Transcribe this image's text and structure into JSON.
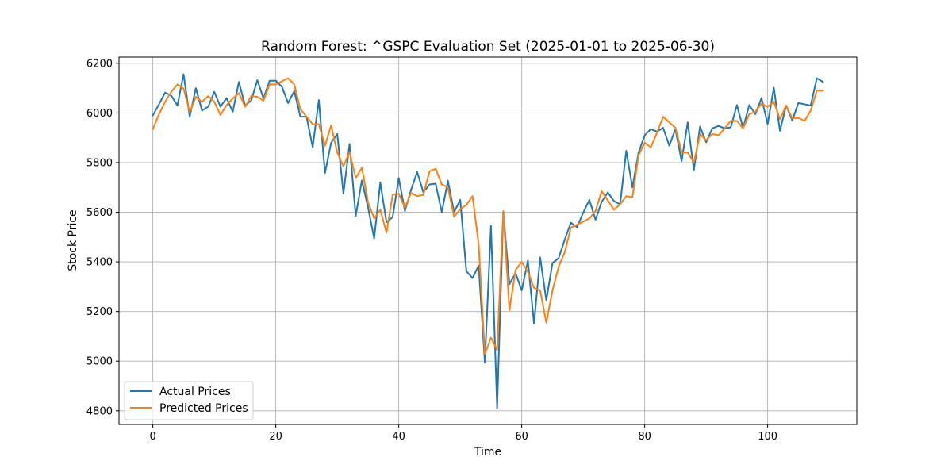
{
  "chart_data": {
    "type": "line",
    "title": "Random Forest: ^GSPC Evaluation Set (2025-01-01 to 2025-06-30)",
    "xlabel": "Time",
    "ylabel": "Stock Price",
    "xlim": [
      -5.5,
      114.5
    ],
    "ylim": [
      4745,
      6225
    ],
    "xticks": [
      0,
      20,
      40,
      60,
      80,
      100
    ],
    "yticks": [
      4800,
      5000,
      5200,
      5400,
      5600,
      5800,
      6000,
      6200
    ],
    "grid": true,
    "legend_position": "lower-left",
    "series": [
      {
        "name": "Actual Prices",
        "color": "#1f77b4",
        "values": [
          5990,
          6035,
          6082,
          6070,
          6030,
          6156,
          5985,
          6100,
          6010,
          6025,
          6085,
          6025,
          6060,
          6005,
          6125,
          6030,
          6050,
          6132,
          6058,
          6130,
          6130,
          6105,
          6040,
          6088,
          5985,
          5985,
          5862,
          6052,
          5758,
          5880,
          5915,
          5675,
          5875,
          5585,
          5728,
          5620,
          5495,
          5720,
          5560,
          5580,
          5738,
          5605,
          5690,
          5762,
          5680,
          5712,
          5715,
          5600,
          5727,
          5600,
          5650,
          5362,
          5335,
          5385,
          4995,
          5545,
          4810,
          5600,
          5310,
          5355,
          5285,
          5405,
          5152,
          5418,
          5245,
          5395,
          5415,
          5490,
          5558,
          5540,
          5598,
          5650,
          5570,
          5642,
          5680,
          5645,
          5632,
          5848,
          5700,
          5840,
          5910,
          5935,
          5925,
          5940,
          5868,
          5935,
          5806,
          5962,
          5770,
          5945,
          5882,
          5938,
          5948,
          5938,
          5942,
          6032,
          5938,
          6032,
          5995,
          6060,
          5955,
          6102,
          5928,
          6030,
          5970,
          6040,
          6035,
          6030,
          6140,
          6125
        ]
      },
      {
        "name": "Predicted Prices",
        "color": "#ff7f0e",
        "values": [
          5935,
          5995,
          6045,
          6085,
          6115,
          6098,
          6005,
          6065,
          6045,
          6068,
          6045,
          5992,
          6032,
          6058,
          6080,
          6025,
          6068,
          6065,
          6050,
          6115,
          6115,
          6128,
          6140,
          6115,
          6015,
          5985,
          5955,
          5955,
          5868,
          5950,
          5840,
          5785,
          5842,
          5738,
          5780,
          5640,
          5575,
          5610,
          5518,
          5670,
          5675,
          5618,
          5678,
          5665,
          5670,
          5765,
          5775,
          5712,
          5700,
          5582,
          5612,
          5630,
          5665,
          5470,
          5028,
          5095,
          5045,
          5605,
          5205,
          5368,
          5400,
          5360,
          5295,
          5285,
          5155,
          5285,
          5380,
          5440,
          5538,
          5550,
          5562,
          5575,
          5605,
          5685,
          5648,
          5610,
          5632,
          5665,
          5660,
          5830,
          5880,
          5862,
          5920,
          5985,
          5962,
          5940,
          5842,
          5840,
          5800,
          5915,
          5890,
          5915,
          5910,
          5938,
          5968,
          5968,
          5938,
          5995,
          6005,
          6038,
          6025,
          6045,
          5975,
          6030,
          5978,
          5980,
          5968,
          6010,
          6090,
          6090
        ]
      }
    ]
  }
}
